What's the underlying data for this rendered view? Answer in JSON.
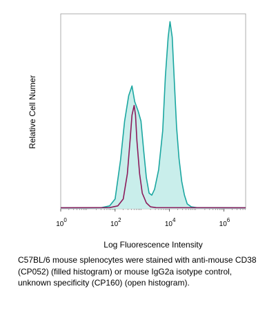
{
  "chart_data": {
    "type": "area",
    "xlabel": "Log Fluorescence Intensity",
    "ylabel": "Relative Cell Numer",
    "xscale": "log",
    "xlim": [
      0,
      6.8
    ],
    "ylim": [
      0,
      100
    ],
    "x_ticks": [
      {
        "base": "10",
        "exp": "0",
        "value": 0
      },
      {
        "base": "10",
        "exp": "2",
        "value": 2
      },
      {
        "base": "10",
        "exp": "4",
        "value": 4
      },
      {
        "base": "10",
        "exp": "6",
        "value": 6
      }
    ],
    "grid": false,
    "series": [
      {
        "style": "filled",
        "color": "#1aa6a0",
        "fill": "#c9eeeb",
        "points": [
          [
            0,
            0.5
          ],
          [
            1.0,
            0.5
          ],
          [
            1.5,
            0.6
          ],
          [
            1.8,
            1.5
          ],
          [
            2.0,
            5
          ],
          [
            2.2,
            25
          ],
          [
            2.35,
            45
          ],
          [
            2.5,
            58
          ],
          [
            2.62,
            63
          ],
          [
            2.72,
            55
          ],
          [
            2.85,
            50
          ],
          [
            2.95,
            45
          ],
          [
            3.05,
            30
          ],
          [
            3.15,
            16
          ],
          [
            3.25,
            8
          ],
          [
            3.35,
            7
          ],
          [
            3.45,
            10
          ],
          [
            3.6,
            20
          ],
          [
            3.75,
            40
          ],
          [
            3.85,
            68
          ],
          [
            3.95,
            88
          ],
          [
            4.02,
            96
          ],
          [
            4.1,
            88
          ],
          [
            4.18,
            65
          ],
          [
            4.26,
            42
          ],
          [
            4.35,
            26
          ],
          [
            4.45,
            14
          ],
          [
            4.55,
            7
          ],
          [
            4.65,
            2.5
          ],
          [
            4.8,
            1
          ],
          [
            5.0,
            0.6
          ],
          [
            6.8,
            0.5
          ]
        ]
      },
      {
        "style": "open",
        "color": "#8b1a5a",
        "points": [
          [
            0,
            0.5
          ],
          [
            1.8,
            0.6
          ],
          [
            2.1,
            1.5
          ],
          [
            2.3,
            5
          ],
          [
            2.45,
            18
          ],
          [
            2.55,
            35
          ],
          [
            2.62,
            48
          ],
          [
            2.7,
            53
          ],
          [
            2.75,
            48
          ],
          [
            2.8,
            35
          ],
          [
            2.9,
            18
          ],
          [
            3.0,
            8
          ],
          [
            3.15,
            3
          ],
          [
            3.3,
            1
          ],
          [
            3.5,
            0.6
          ],
          [
            6.8,
            0.5
          ]
        ]
      }
    ]
  },
  "caption": "C57BL/6 mouse splenocytes were stained with anti-mouse CD38 (CP052) (filled histogram) or mouse IgG2a isotype control, unknown specificity (CP160) (open histogram)."
}
